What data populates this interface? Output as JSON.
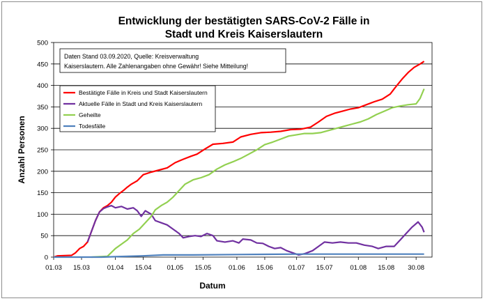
{
  "chart_data": {
    "type": "line",
    "title_line1": "Entwicklung der bestätigten SARS-CoV-2 Fälle in",
    "title_line2": "Stadt und Kreis Kaiserslautern",
    "xlabel": "Datum",
    "ylabel": "Anzahl Personen",
    "ylim": [
      0,
      500
    ],
    "yticks": [
      0,
      50,
      100,
      150,
      200,
      250,
      300,
      350,
      400,
      450,
      500
    ],
    "xlim": [
      "2020-03-01",
      "2020-09-07"
    ],
    "xticks": [
      {
        "date": "2020-03-01",
        "label": "01.03"
      },
      {
        "date": "2020-03-15",
        "label": "15.03"
      },
      {
        "date": "2020-04-01",
        "label": "01.04"
      },
      {
        "date": "2020-04-15",
        "label": "15.04"
      },
      {
        "date": "2020-05-01",
        "label": "01.05"
      },
      {
        "date": "2020-05-15",
        "label": "15.05"
      },
      {
        "date": "2020-06-01",
        "label": "01.06"
      },
      {
        "date": "2020-06-15",
        "label": "15.06"
      },
      {
        "date": "2020-07-01",
        "label": "01.07"
      },
      {
        "date": "2020-07-15",
        "label": "15.07"
      },
      {
        "date": "2020-08-01",
        "label": "01.08"
      },
      {
        "date": "2020-08-15",
        "label": "15.08"
      },
      {
        "date": "2020-08-30",
        "label": "30.08"
      }
    ],
    "grid": "horizontal",
    "legend_position": "left",
    "annotation_line1": "Daten Stand 03.09.2020, Quelle: Kreisverwaltung",
    "annotation_line2": "Kaiserslautern. Alle Zahlenangaben ohne Gewähr! Siehe Mitteilung!",
    "series": [
      {
        "name": "Bestätigte Fälle in Kreis und Stadt Kaiserslautern",
        "color": "#ff0000",
        "points": [
          [
            "2020-03-01",
            0
          ],
          [
            "2020-03-03",
            3
          ],
          [
            "2020-03-10",
            4
          ],
          [
            "2020-03-12",
            10
          ],
          [
            "2020-03-14",
            20
          ],
          [
            "2020-03-16",
            25
          ],
          [
            "2020-03-18",
            35
          ],
          [
            "2020-03-20",
            60
          ],
          [
            "2020-03-22",
            85
          ],
          [
            "2020-03-24",
            105
          ],
          [
            "2020-03-26",
            115
          ],
          [
            "2020-03-28",
            120
          ],
          [
            "2020-03-30",
            128
          ],
          [
            "2020-04-01",
            140
          ],
          [
            "2020-04-03",
            148
          ],
          [
            "2020-04-05",
            155
          ],
          [
            "2020-04-07",
            163
          ],
          [
            "2020-04-09",
            170
          ],
          [
            "2020-04-12",
            178
          ],
          [
            "2020-04-15",
            192
          ],
          [
            "2020-04-19",
            198
          ],
          [
            "2020-04-23",
            203
          ],
          [
            "2020-04-27",
            208
          ],
          [
            "2020-05-01",
            220
          ],
          [
            "2020-05-05",
            228
          ],
          [
            "2020-05-09",
            235
          ],
          [
            "2020-05-12",
            240
          ],
          [
            "2020-05-16",
            252
          ],
          [
            "2020-05-20",
            263
          ],
          [
            "2020-05-25",
            265
          ],
          [
            "2020-05-30",
            268
          ],
          [
            "2020-06-03",
            280
          ],
          [
            "2020-06-08",
            286
          ],
          [
            "2020-06-13",
            290
          ],
          [
            "2020-06-18",
            291
          ],
          [
            "2020-06-23",
            293
          ],
          [
            "2020-06-28",
            297
          ],
          [
            "2020-07-03",
            298
          ],
          [
            "2020-07-08",
            303
          ],
          [
            "2020-07-12",
            315
          ],
          [
            "2020-07-16",
            328
          ],
          [
            "2020-07-20",
            335
          ],
          [
            "2020-07-24",
            340
          ],
          [
            "2020-07-28",
            345
          ],
          [
            "2020-08-01",
            348
          ],
          [
            "2020-08-05",
            355
          ],
          [
            "2020-08-09",
            362
          ],
          [
            "2020-08-13",
            368
          ],
          [
            "2020-08-17",
            380
          ],
          [
            "2020-08-20",
            398
          ],
          [
            "2020-08-23",
            415
          ],
          [
            "2020-08-26",
            430
          ],
          [
            "2020-08-29",
            442
          ],
          [
            "2020-09-01",
            450
          ],
          [
            "2020-09-03",
            456
          ]
        ]
      },
      {
        "name": "Aktuelle Fälle in Stadt und Kreis Kaiserslautern",
        "color": "#7030a0",
        "points": [
          [
            "2020-03-18",
            35
          ],
          [
            "2020-03-20",
            60
          ],
          [
            "2020-03-22",
            85
          ],
          [
            "2020-03-24",
            105
          ],
          [
            "2020-03-26",
            113
          ],
          [
            "2020-03-28",
            117
          ],
          [
            "2020-03-30",
            120
          ],
          [
            "2020-04-01",
            115
          ],
          [
            "2020-04-04",
            118
          ],
          [
            "2020-04-07",
            112
          ],
          [
            "2020-04-10",
            115
          ],
          [
            "2020-04-12",
            108
          ],
          [
            "2020-04-14",
            95
          ],
          [
            "2020-04-16",
            108
          ],
          [
            "2020-04-19",
            100
          ],
          [
            "2020-04-21",
            85
          ],
          [
            "2020-04-24",
            80
          ],
          [
            "2020-04-27",
            75
          ],
          [
            "2020-04-30",
            65
          ],
          [
            "2020-05-03",
            55
          ],
          [
            "2020-05-05",
            45
          ],
          [
            "2020-05-08",
            48
          ],
          [
            "2020-05-11",
            50
          ],
          [
            "2020-05-14",
            48
          ],
          [
            "2020-05-17",
            55
          ],
          [
            "2020-05-20",
            50
          ],
          [
            "2020-05-22",
            38
          ],
          [
            "2020-05-26",
            35
          ],
          [
            "2020-05-30",
            38
          ],
          [
            "2020-06-02",
            33
          ],
          [
            "2020-06-04",
            42
          ],
          [
            "2020-06-08",
            40
          ],
          [
            "2020-06-11",
            33
          ],
          [
            "2020-06-14",
            32
          ],
          [
            "2020-06-17",
            25
          ],
          [
            "2020-06-20",
            20
          ],
          [
            "2020-06-23",
            22
          ],
          [
            "2020-06-26",
            15
          ],
          [
            "2020-06-29",
            10
          ],
          [
            "2020-07-02",
            5
          ],
          [
            "2020-07-05",
            8
          ],
          [
            "2020-07-09",
            15
          ],
          [
            "2020-07-12",
            25
          ],
          [
            "2020-07-15",
            35
          ],
          [
            "2020-07-19",
            33
          ],
          [
            "2020-07-23",
            35
          ],
          [
            "2020-07-27",
            33
          ],
          [
            "2020-07-31",
            33
          ],
          [
            "2020-08-04",
            28
          ],
          [
            "2020-08-08",
            25
          ],
          [
            "2020-08-11",
            20
          ],
          [
            "2020-08-15",
            25
          ],
          [
            "2020-08-19",
            25
          ],
          [
            "2020-08-22",
            40
          ],
          [
            "2020-08-25",
            55
          ],
          [
            "2020-08-28",
            70
          ],
          [
            "2020-08-31",
            82
          ],
          [
            "2020-09-02",
            70
          ],
          [
            "2020-09-03",
            58
          ]
        ]
      },
      {
        "name": "Geheilte",
        "color": "#92d050",
        "points": [
          [
            "2020-03-20",
            0
          ],
          [
            "2020-03-28",
            2
          ],
          [
            "2020-04-01",
            20
          ],
          [
            "2020-04-04",
            30
          ],
          [
            "2020-04-07",
            40
          ],
          [
            "2020-04-10",
            55
          ],
          [
            "2020-04-13",
            65
          ],
          [
            "2020-04-16",
            80
          ],
          [
            "2020-04-19",
            95
          ],
          [
            "2020-04-21",
            110
          ],
          [
            "2020-04-24",
            120
          ],
          [
            "2020-04-27",
            128
          ],
          [
            "2020-04-30",
            140
          ],
          [
            "2020-05-03",
            155
          ],
          [
            "2020-05-06",
            170
          ],
          [
            "2020-05-10",
            180
          ],
          [
            "2020-05-14",
            185
          ],
          [
            "2020-05-18",
            192
          ],
          [
            "2020-05-22",
            205
          ],
          [
            "2020-05-26",
            215
          ],
          [
            "2020-05-30",
            222
          ],
          [
            "2020-06-03",
            230
          ],
          [
            "2020-06-07",
            240
          ],
          [
            "2020-06-11",
            250
          ],
          [
            "2020-06-15",
            262
          ],
          [
            "2020-06-19",
            268
          ],
          [
            "2020-06-23",
            275
          ],
          [
            "2020-06-27",
            282
          ],
          [
            "2020-07-01",
            285
          ],
          [
            "2020-07-05",
            288
          ],
          [
            "2020-07-09",
            288
          ],
          [
            "2020-07-13",
            290
          ],
          [
            "2020-07-17",
            295
          ],
          [
            "2020-07-21",
            300
          ],
          [
            "2020-07-25",
            305
          ],
          [
            "2020-07-29",
            310
          ],
          [
            "2020-08-02",
            315
          ],
          [
            "2020-08-06",
            322
          ],
          [
            "2020-08-10",
            332
          ],
          [
            "2020-08-14",
            340
          ],
          [
            "2020-08-18",
            348
          ],
          [
            "2020-08-22",
            352
          ],
          [
            "2020-08-26",
            355
          ],
          [
            "2020-08-30",
            357
          ],
          [
            "2020-09-01",
            370
          ],
          [
            "2020-09-03",
            392
          ]
        ]
      },
      {
        "name": "Todesfälle",
        "color": "#4f81bd",
        "points": [
          [
            "2020-03-01",
            0
          ],
          [
            "2020-03-25",
            0
          ],
          [
            "2020-04-01",
            1
          ],
          [
            "2020-04-15",
            3
          ],
          [
            "2020-04-25",
            5
          ],
          [
            "2020-05-10",
            5
          ],
          [
            "2020-06-01",
            6
          ],
          [
            "2020-07-01",
            7
          ],
          [
            "2020-08-01",
            7
          ],
          [
            "2020-09-03",
            7
          ]
        ]
      }
    ]
  }
}
